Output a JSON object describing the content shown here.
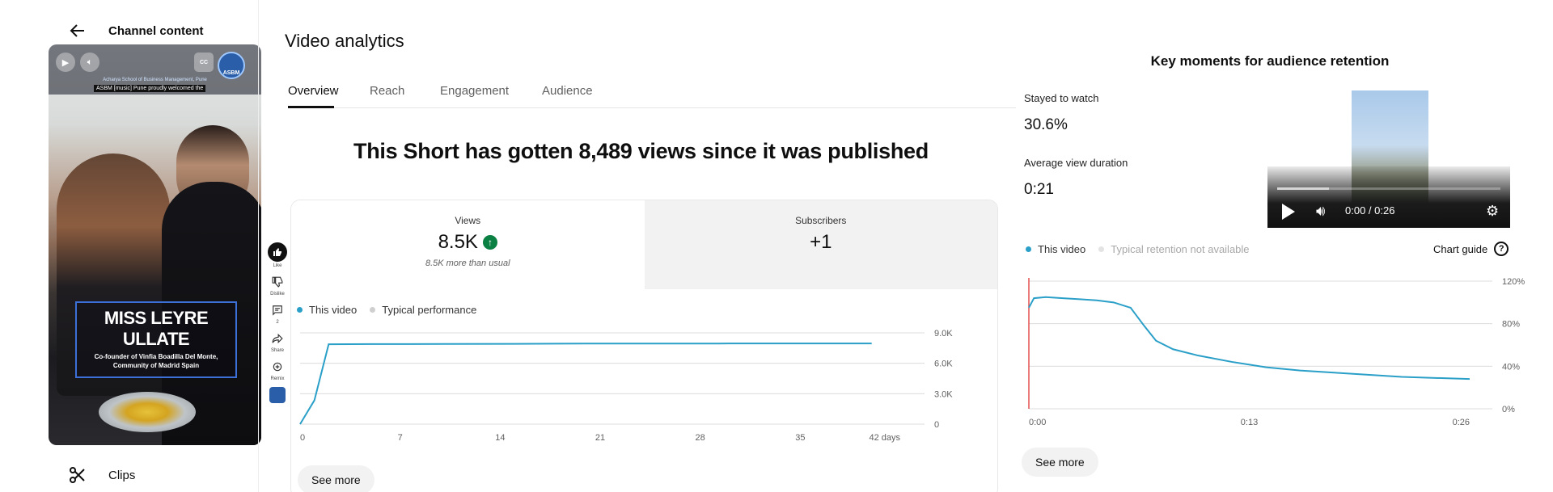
{
  "left": {
    "back_title": "Channel content",
    "video": {
      "school": "Acharya School of Business Management, Pune",
      "caption": "ASBM [music] Pune proudly welcomed the",
      "logo_text": "ASBM",
      "cc_label": "CC",
      "name": "MISS LEYRE ULLATE",
      "subtitle": "Co-founder of Vinfia Boadilla Del Monte, Community of Madrid Spain"
    },
    "actions": [
      {
        "label": "Like"
      },
      {
        "label": "Dislike"
      },
      {
        "label": "2"
      },
      {
        "label": "Share"
      },
      {
        "label": "Remix"
      }
    ],
    "clips_label": "Clips"
  },
  "middle": {
    "title": "Video analytics",
    "tabs": [
      {
        "label": "Overview"
      },
      {
        "label": "Reach"
      },
      {
        "label": "Engagement"
      },
      {
        "label": "Audience"
      }
    ],
    "headline": "This Short has gotten 8,489 views since it was published",
    "metrics": {
      "views_label": "Views",
      "views_value": "8.5K",
      "views_note": "8.5K more than usual",
      "subs_label": "Subscribers",
      "subs_value": "+1"
    },
    "legend": {
      "this_video": "This video",
      "typical": "Typical performance"
    },
    "see_more": "See more"
  },
  "right": {
    "title": "Key moments for audience retention",
    "stayed_label": "Stayed to watch",
    "stayed_value": "30.6%",
    "avd_label": "Average view duration",
    "avd_value": "0:21",
    "player_time": "0:00 / 0:26",
    "legend": {
      "this_video": "This video",
      "typical": "Typical retention not available"
    },
    "chart_guide": "Chart guide",
    "see_more": "See more"
  },
  "colors": {
    "series": "#2a9fc8",
    "marker": "#e05050",
    "grid": "#dcdcdc",
    "accent": "#0f0f0f"
  },
  "chart_data": [
    {
      "type": "line",
      "x_ticks": [
        "0",
        "7",
        "14",
        "21",
        "28",
        "35",
        "42 days"
      ],
      "y_ticks": [
        "9.0K",
        "6.0K",
        "3.0K",
        "0"
      ],
      "ylim": [
        0,
        9600
      ],
      "xlim": [
        0,
        42
      ],
      "series": [
        {
          "name": "This video",
          "x": [
            0,
            1,
            2,
            5,
            10,
            15,
            18,
            20,
            25,
            30,
            35,
            40
          ],
          "y": [
            0,
            2500,
            8400,
            8420,
            8430,
            8440,
            8460,
            8470,
            8475,
            8480,
            8485,
            8489
          ]
        }
      ]
    },
    {
      "type": "line",
      "x_ticks": [
        "0:00",
        "0:13",
        "0:26"
      ],
      "y_ticks": [
        "120%",
        "80%",
        "40%",
        "0%"
      ],
      "ylim": [
        0,
        120
      ],
      "xlim": [
        0,
        26
      ],
      "series": [
        {
          "name": "This video",
          "x": [
            0,
            0.3,
            1,
            2,
            3,
            4,
            5,
            6,
            6.8,
            7.5,
            8.5,
            10,
            12,
            14,
            16,
            18,
            20,
            22,
            24,
            26
          ],
          "y": [
            95,
            104,
            105,
            104,
            103,
            102,
            100,
            95,
            78,
            64,
            56,
            50,
            44,
            39,
            36,
            34,
            32,
            30,
            29,
            28
          ]
        }
      ]
    }
  ]
}
